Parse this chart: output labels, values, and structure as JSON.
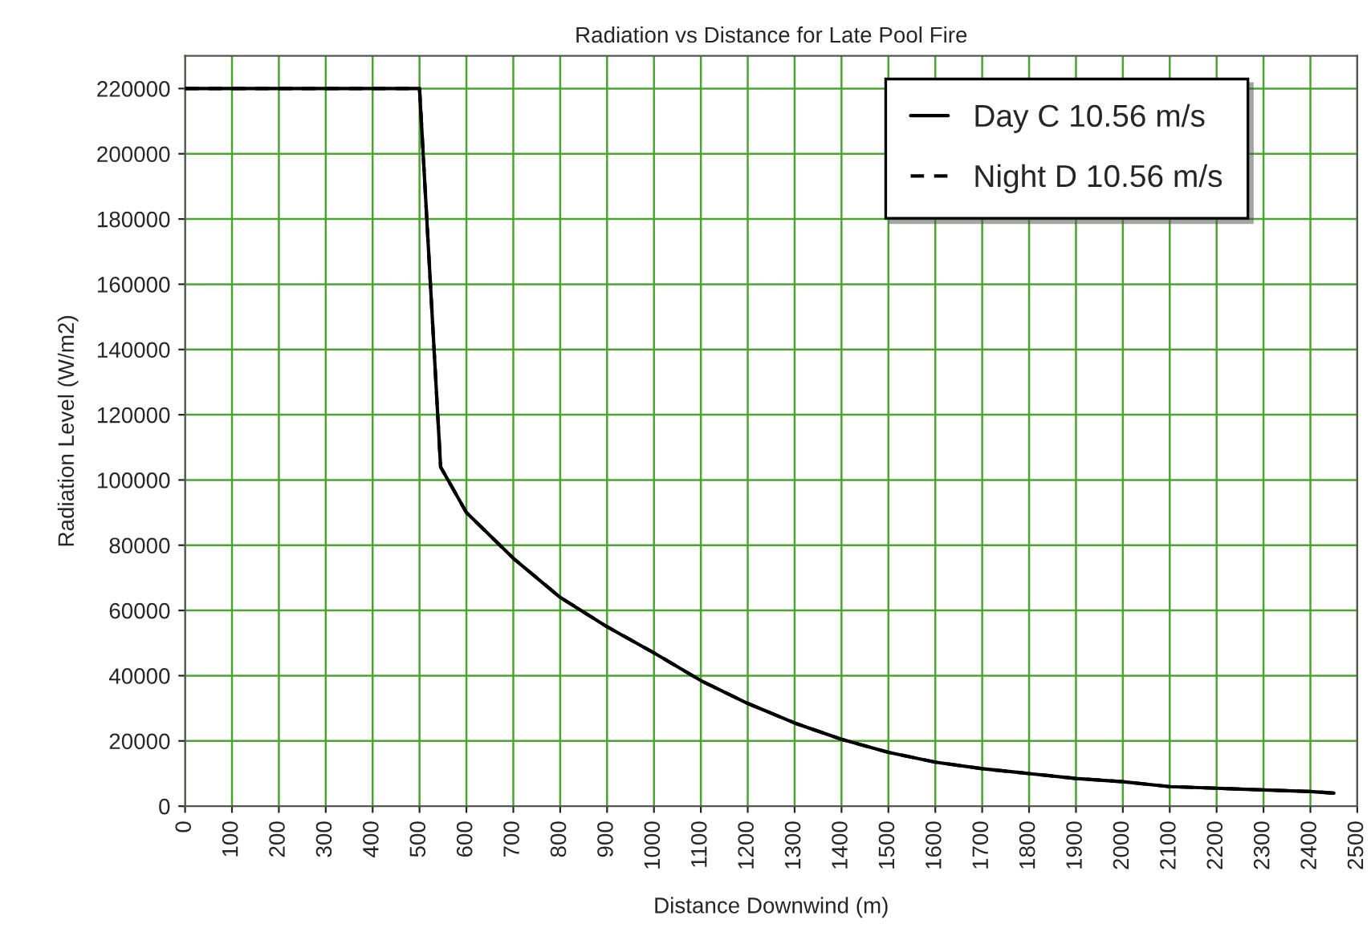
{
  "chart_data": {
    "type": "line",
    "title": "Radiation vs Distance for Late Pool Fire",
    "xlabel": "Distance Downwind (m)",
    "ylabel": "Radiation Level (W/m2)",
    "x": [
      0,
      500,
      545,
      600,
      700,
      800,
      900,
      1000,
      1100,
      1200,
      1300,
      1400,
      1500,
      1600,
      1700,
      1800,
      1900,
      2000,
      2100,
      2200,
      2300,
      2400,
      2450
    ],
    "series": [
      {
        "name": "Day C 10.56 m/s",
        "color": "#000000",
        "line_style": "solid",
        "values": [
          220000,
          220000,
          104000,
          90000,
          76000,
          64000,
          55000,
          47000,
          38500,
          31500,
          25500,
          20500,
          16500,
          13500,
          11500,
          10000,
          8500,
          7500,
          6000,
          5500,
          5000,
          4500,
          4000
        ]
      },
      {
        "name": "Night D 10.56 m/s",
        "color": "#000000",
        "line_style": "dashed",
        "values": [
          220000,
          220000,
          104000,
          90000,
          76000,
          64000,
          55000,
          47000,
          38500,
          31500,
          25500,
          20500,
          16500,
          13500,
          11500,
          10000,
          8500,
          7500,
          6000,
          5500,
          5000,
          4500,
          4000
        ]
      }
    ],
    "xlim": [
      0,
      2500
    ],
    "xticks": [
      0,
      100,
      200,
      300,
      400,
      500,
      600,
      700,
      800,
      900,
      1000,
      1100,
      1200,
      1300,
      1400,
      1500,
      1600,
      1700,
      1800,
      1900,
      2000,
      2100,
      2200,
      2300,
      2400,
      2500
    ],
    "ylim": [
      0,
      230000
    ],
    "yticks": [
      0,
      20000,
      40000,
      60000,
      80000,
      100000,
      120000,
      140000,
      160000,
      180000,
      200000,
      220000
    ],
    "grid": true,
    "legend": "top right"
  }
}
